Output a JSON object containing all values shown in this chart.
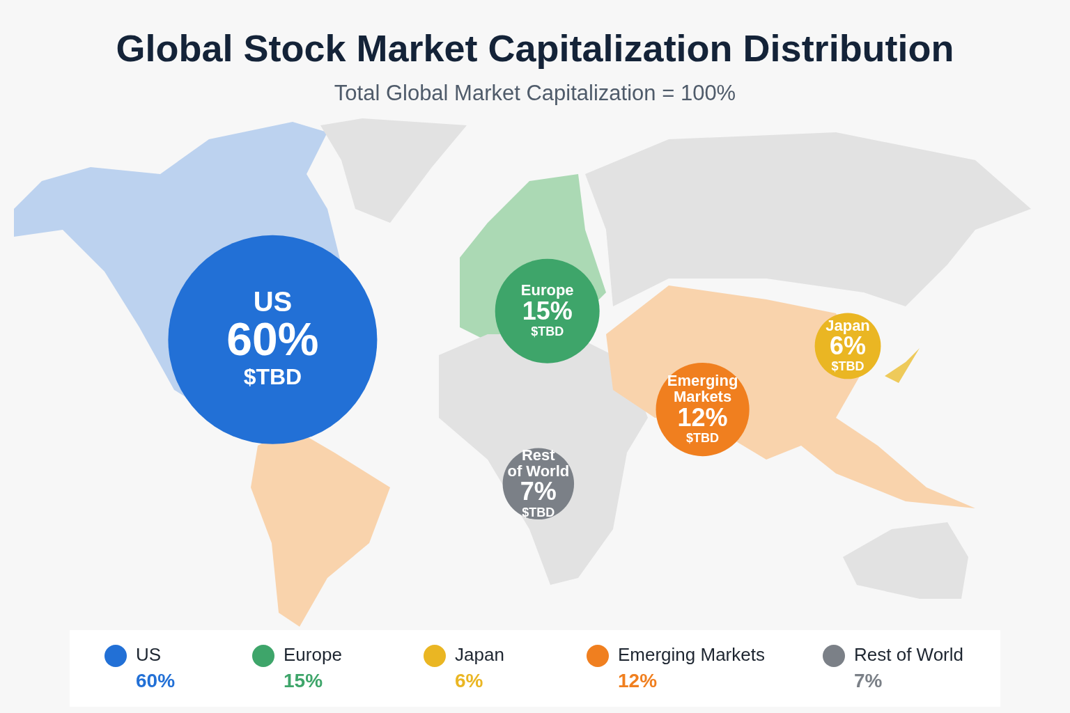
{
  "chart_data": {
    "type": "other",
    "title": "Global Stock Market Capitalization Distribution",
    "subtitle": "Total Global Market Capitalization = 100%",
    "categories": [
      "US",
      "Europe",
      "Japan",
      "Emerging Markets",
      "Rest of World"
    ],
    "values": [
      60,
      15,
      6,
      12,
      7
    ],
    "colors": [
      "#2270d6",
      "#3ea56a",
      "#eab623",
      "#f07f1f",
      "#7b8087"
    ],
    "value_labels": [
      "60%",
      "15%",
      "6%",
      "12%",
      "7%"
    ],
    "annotations": [
      {
        "text": "$TBD",
        "x": "US"
      },
      {
        "text": "$TBD",
        "x": "Europe"
      },
      {
        "text": "$TBD",
        "x": "Japan"
      },
      {
        "text": "$TBD",
        "x": "Emerging Markets"
      },
      {
        "text": "$TBD",
        "x": "Rest of World"
      }
    ]
  }
}
